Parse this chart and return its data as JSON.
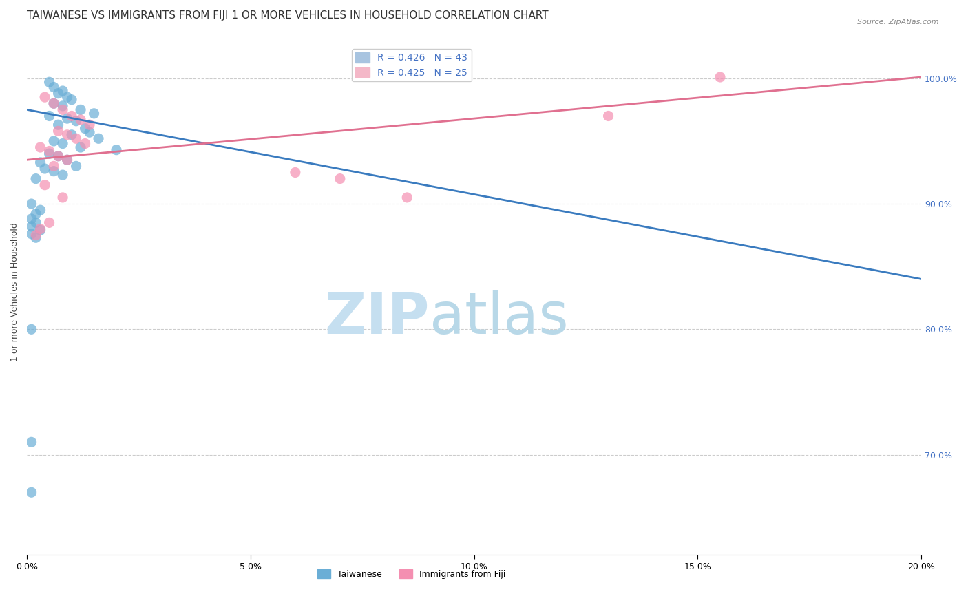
{
  "title": "TAIWANESE VS IMMIGRANTS FROM FIJI 1 OR MORE VEHICLES IN HOUSEHOLD CORRELATION CHART",
  "source": "Source: ZipAtlas.com",
  "ylabel": "1 or more Vehicles in Household",
  "ytick_values": [
    0.7,
    0.8,
    0.9,
    1.0
  ],
  "xlim": [
    0.0,
    0.2
  ],
  "ylim": [
    0.62,
    1.04
  ],
  "legend_entries": [
    {
      "label": "R = 0.426   N = 43",
      "color": "#a8c4e0"
    },
    {
      "label": "R = 0.425   N = 25",
      "color": "#f4b8c8"
    }
  ],
  "taiwanese_scatter": [
    [
      0.005,
      0.997
    ],
    [
      0.006,
      0.993
    ],
    [
      0.008,
      0.99
    ],
    [
      0.007,
      0.988
    ],
    [
      0.009,
      0.985
    ],
    [
      0.01,
      0.983
    ],
    [
      0.006,
      0.98
    ],
    [
      0.008,
      0.978
    ],
    [
      0.012,
      0.975
    ],
    [
      0.015,
      0.972
    ],
    [
      0.005,
      0.97
    ],
    [
      0.009,
      0.968
    ],
    [
      0.011,
      0.966
    ],
    [
      0.007,
      0.963
    ],
    [
      0.013,
      0.96
    ],
    [
      0.014,
      0.957
    ],
    [
      0.01,
      0.955
    ],
    [
      0.016,
      0.952
    ],
    [
      0.006,
      0.95
    ],
    [
      0.008,
      0.948
    ],
    [
      0.012,
      0.945
    ],
    [
      0.02,
      0.943
    ],
    [
      0.005,
      0.94
    ],
    [
      0.007,
      0.938
    ],
    [
      0.009,
      0.935
    ],
    [
      0.003,
      0.933
    ],
    [
      0.011,
      0.93
    ],
    [
      0.004,
      0.928
    ],
    [
      0.006,
      0.926
    ],
    [
      0.008,
      0.923
    ],
    [
      0.002,
      0.92
    ],
    [
      0.001,
      0.9
    ],
    [
      0.003,
      0.895
    ],
    [
      0.002,
      0.892
    ],
    [
      0.001,
      0.888
    ],
    [
      0.002,
      0.885
    ],
    [
      0.001,
      0.882
    ],
    [
      0.003,
      0.879
    ],
    [
      0.001,
      0.876
    ],
    [
      0.002,
      0.873
    ],
    [
      0.001,
      0.8
    ],
    [
      0.001,
      0.71
    ],
    [
      0.001,
      0.67
    ]
  ],
  "fiji_scatter": [
    [
      0.004,
      0.985
    ],
    [
      0.006,
      0.98
    ],
    [
      0.008,
      0.975
    ],
    [
      0.01,
      0.97
    ],
    [
      0.012,
      0.967
    ],
    [
      0.014,
      0.963
    ],
    [
      0.007,
      0.958
    ],
    [
      0.009,
      0.955
    ],
    [
      0.011,
      0.952
    ],
    [
      0.013,
      0.948
    ],
    [
      0.003,
      0.945
    ],
    [
      0.005,
      0.942
    ],
    [
      0.007,
      0.938
    ],
    [
      0.009,
      0.935
    ],
    [
      0.006,
      0.93
    ],
    [
      0.004,
      0.915
    ],
    [
      0.008,
      0.905
    ],
    [
      0.005,
      0.885
    ],
    [
      0.003,
      0.88
    ],
    [
      0.002,
      0.875
    ],
    [
      0.06,
      0.925
    ],
    [
      0.07,
      0.92
    ],
    [
      0.085,
      0.905
    ],
    [
      0.13,
      0.97
    ],
    [
      0.155,
      1.001
    ]
  ],
  "taiwanese_line": {
    "x": [
      0.0,
      0.2
    ],
    "y": [
      0.975,
      0.84
    ]
  },
  "fiji_line": {
    "x": [
      0.0,
      0.2
    ],
    "y": [
      0.935,
      1.001
    ]
  },
  "taiwanese_color": "#6aaed6",
  "fiji_color": "#f48fb1",
  "taiwanese_line_color": "#3a7bbf",
  "fiji_line_color": "#e07090",
  "scatter_size": 120,
  "background_color": "#ffffff",
  "watermark_zip": "ZIP",
  "watermark_atlas": "atlas",
  "watermark_color": "#daeef8",
  "grid_color": "#cccccc",
  "title_fontsize": 11,
  "label_fontsize": 9,
  "tick_fontsize": 9,
  "legend_fontsize": 10
}
